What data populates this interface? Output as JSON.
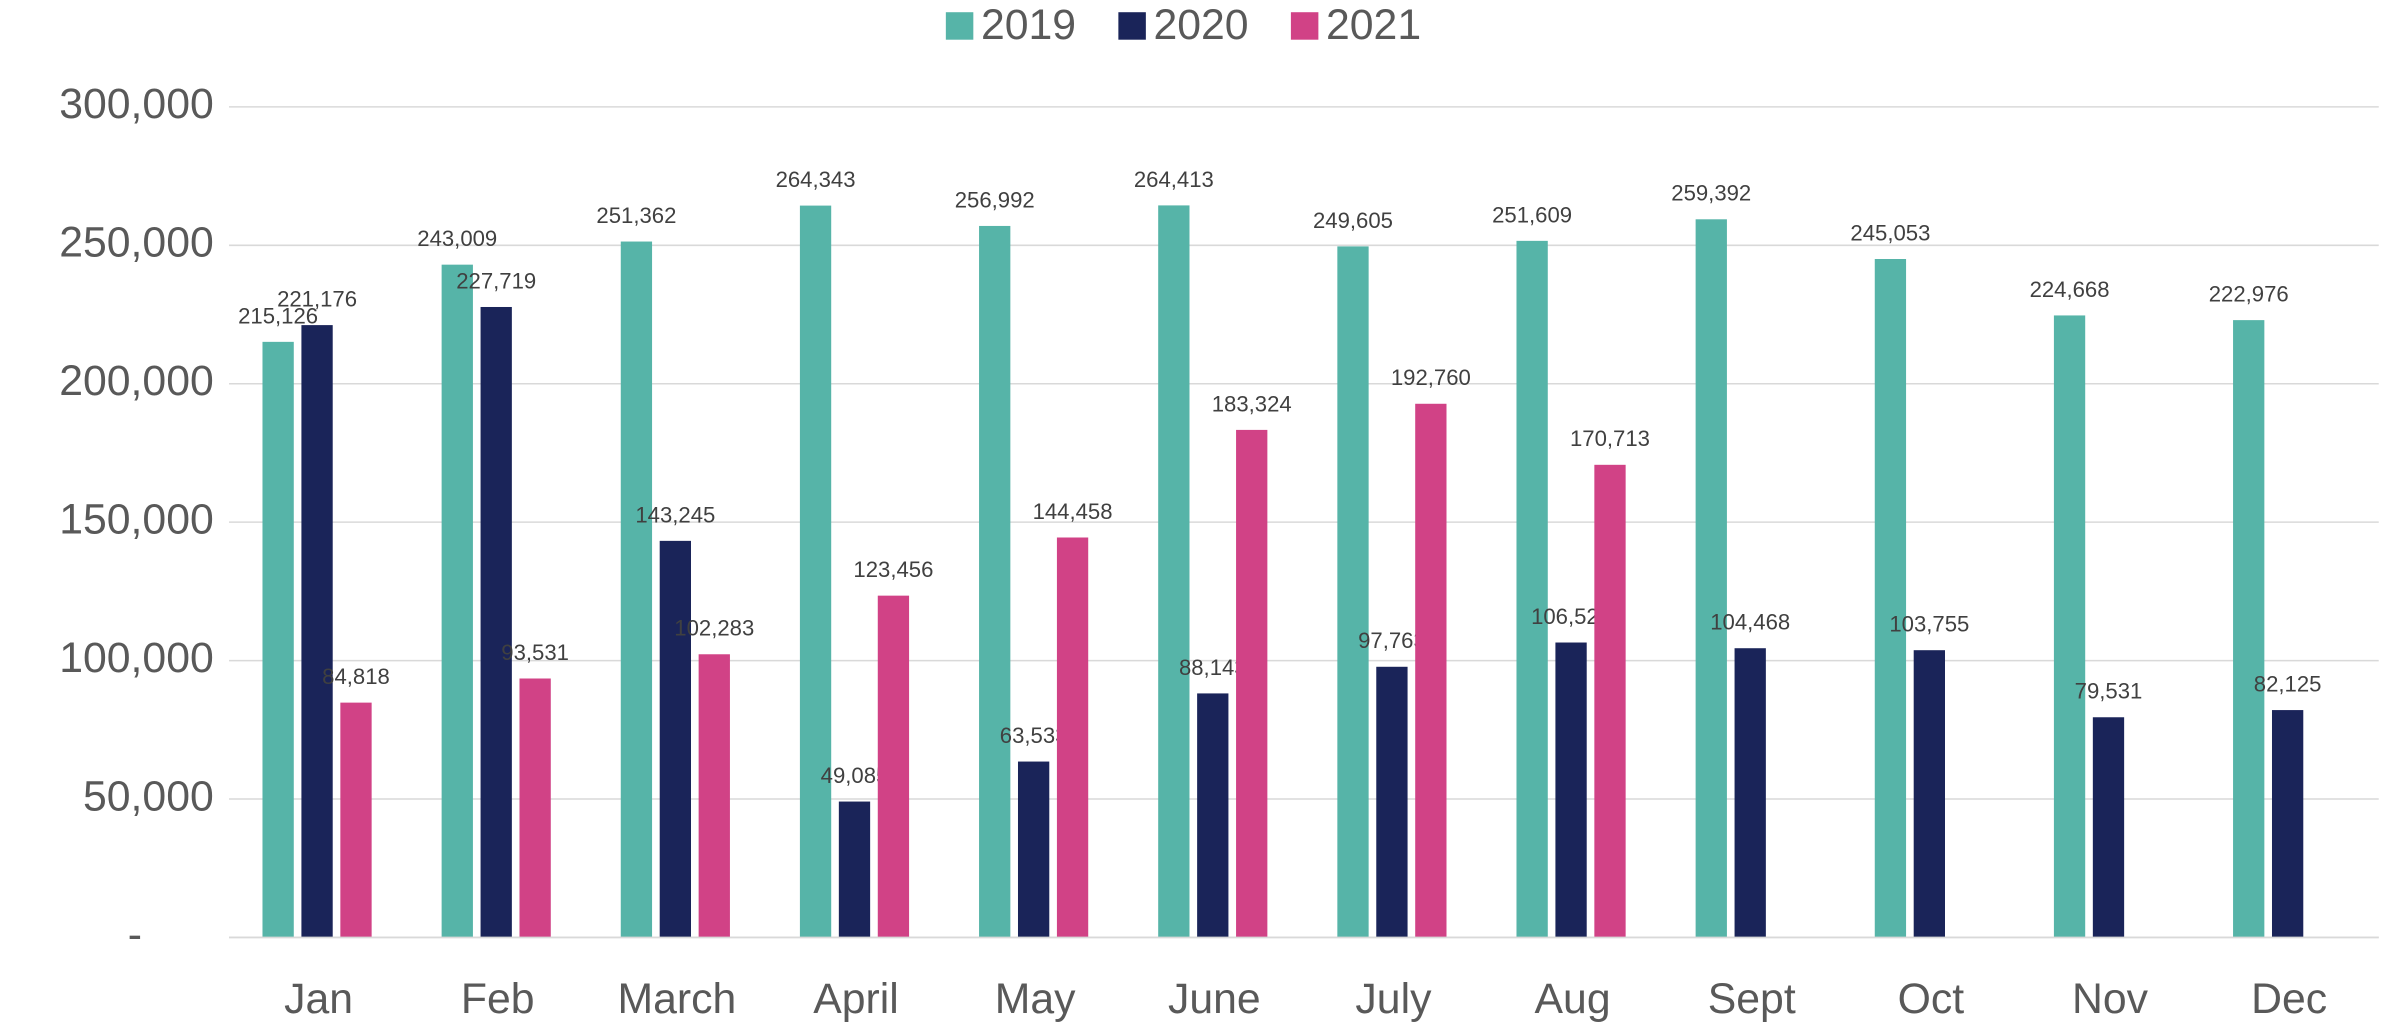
{
  "chart_data": {
    "type": "bar",
    "categories": [
      "Jan",
      "Feb",
      "March",
      "April",
      "May",
      "June",
      "July",
      "Aug",
      "Sept",
      "Oct",
      "Nov",
      "Dec"
    ],
    "series": [
      {
        "name": "2019",
        "color": "#56b4a8",
        "values": [
          215126,
          243009,
          251362,
          264343,
          256992,
          264413,
          249605,
          251609,
          259392,
          245053,
          224668,
          222976
        ],
        "value_labels": [
          "215,126",
          "243,009",
          "251,362",
          "264,343",
          "256,992",
          "264,413",
          "249,605",
          "251,609",
          "259,392",
          "245,053",
          "224,668",
          "222,976"
        ]
      },
      {
        "name": "2020",
        "color": "#1a2459",
        "values": [
          221176,
          227719,
          143245,
          49085,
          63533,
          88143,
          97763,
          106528,
          104468,
          103755,
          79531,
          82125
        ],
        "value_labels": [
          "221,176",
          "227,719",
          "143,245",
          "49,085",
          "63,533",
          "88,143",
          "97,763",
          "106,528",
          "104,468",
          "103,755",
          "79,531",
          "82,125"
        ]
      },
      {
        "name": "2021",
        "color": "#d14286",
        "values": [
          84818,
          93531,
          102283,
          123456,
          144458,
          183324,
          192760,
          170713,
          null,
          null,
          null,
          null
        ],
        "value_labels": [
          "84,818",
          "93,531",
          "102,283",
          "123,456",
          "144,458",
          "183,324",
          "192,760",
          "170,713",
          null,
          null,
          null,
          null
        ]
      }
    ],
    "ylim": [
      0,
      300000
    ],
    "yticks": [
      {
        "value": 0,
        "label": "-"
      },
      {
        "value": 50000,
        "label": "50,000"
      },
      {
        "value": 100000,
        "label": "100,000"
      },
      {
        "value": 150000,
        "label": "150,000"
      },
      {
        "value": 200000,
        "label": "200,000"
      },
      {
        "value": 250000,
        "label": "250,000"
      },
      {
        "value": 300000,
        "label": "300,000"
      }
    ],
    "grid": true,
    "legend": "top"
  }
}
